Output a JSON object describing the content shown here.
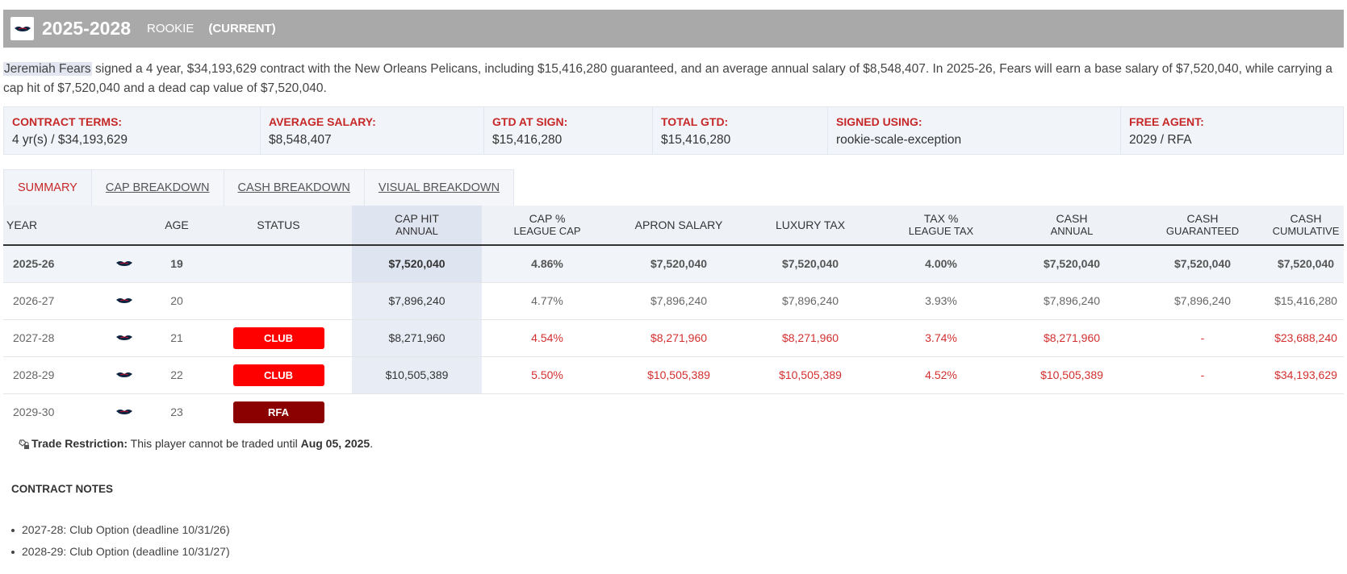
{
  "header": {
    "years": "2025-2028",
    "type": "ROOKIE",
    "current": "(CURRENT)",
    "logo_icon": "pelicans-logo"
  },
  "summary": {
    "player_name": "Jeremiah Fears",
    "text": " signed a 4 year, $34,193,629 contract with the New Orleans Pelicans, including $15,416,280 guaranteed, and an average annual salary of $8,548,407. In 2025-26, Fears will earn a base salary of $7,520,040, while carrying a cap hit of $7,520,040 and a dead cap value of $7,520,040."
  },
  "terms": [
    {
      "label": "CONTRACT TERMS:",
      "value": "4 yr(s) / $34,193,629"
    },
    {
      "label": "AVERAGE SALARY:",
      "value": "$8,548,407"
    },
    {
      "label": "GTD AT SIGN:",
      "value": "$15,416,280"
    },
    {
      "label": "TOTAL GTD:",
      "value": "$15,416,280"
    },
    {
      "label": "SIGNED USING:",
      "value": "rookie-scale-exception"
    },
    {
      "label": "FREE AGENT:",
      "value": "2029 / RFA"
    }
  ],
  "tabs": [
    {
      "label": "SUMMARY",
      "active": true
    },
    {
      "label": "CAP BREAKDOWN"
    },
    {
      "label": "CASH BREAKDOWN"
    },
    {
      "label": "VISUAL BREAKDOWN"
    }
  ],
  "table": {
    "headers": {
      "year": "YEAR",
      "age": "AGE",
      "status": "STATUS",
      "caphit": "CAP HIT",
      "caphit_sub": "ANNUAL",
      "cappct": "CAP %",
      "cappct_sub": "LEAGUE CAP",
      "apron": "APRON SALARY",
      "luxury": "LUXURY TAX",
      "taxpct": "TAX %",
      "taxpct_sub": "LEAGUE TAX",
      "cash": "CASH",
      "cash_sub": "ANNUAL",
      "cashg": "CASH",
      "cashg_sub": "GUARANTEED",
      "cashc": "CASH",
      "cashc_sub": "CUMULATIVE"
    },
    "rows": [
      {
        "year": "2025-26",
        "age": "19",
        "status": "",
        "caphit": "$7,520,040",
        "cappct": "4.86%",
        "apron": "$7,520,040",
        "luxury": "$7,520,040",
        "taxpct": "4.00%",
        "cash": "$7,520,040",
        "cashg": "$7,520,040",
        "cashc": "$7,520,040"
      },
      {
        "year": "2026-27",
        "age": "20",
        "status": "",
        "caphit": "$7,896,240",
        "cappct": "4.77%",
        "apron": "$7,896,240",
        "luxury": "$7,896,240",
        "taxpct": "3.93%",
        "cash": "$7,896,240",
        "cashg": "$7,896,240",
        "cashc": "$15,416,280"
      },
      {
        "year": "2027-28",
        "age": "21",
        "status": "CLUB",
        "caphit": "$8,271,960",
        "cappct": "4.54%",
        "apron": "$8,271,960",
        "luxury": "$8,271,960",
        "taxpct": "3.74%",
        "cash": "$8,271,960",
        "cashg": "-",
        "cashc": "$23,688,240"
      },
      {
        "year": "2028-29",
        "age": "22",
        "status": "CLUB",
        "caphit": "$10,505,389",
        "cappct": "5.50%",
        "apron": "$10,505,389",
        "luxury": "$10,505,389",
        "taxpct": "4.52%",
        "cash": "$10,505,389",
        "cashg": "-",
        "cashc": "$34,193,629"
      },
      {
        "year": "2029-30",
        "age": "23",
        "status": "RFA"
      }
    ]
  },
  "trade": {
    "label": "Trade Restriction:",
    "text": " This player cannot be traded until ",
    "date": "Aug 05, 2025",
    "end": "."
  },
  "notes": {
    "title": "CONTRACT NOTES",
    "items": [
      "2027-28: Club Option (deadline 10/31/26)",
      "2028-29: Club Option (deadline 10/31/27)"
    ]
  },
  "colors": {
    "accent_red": "#c62828",
    "club_badge": "#ff0000",
    "rfa_badge": "#8b0000",
    "header_bg": "#a9a9a9"
  }
}
